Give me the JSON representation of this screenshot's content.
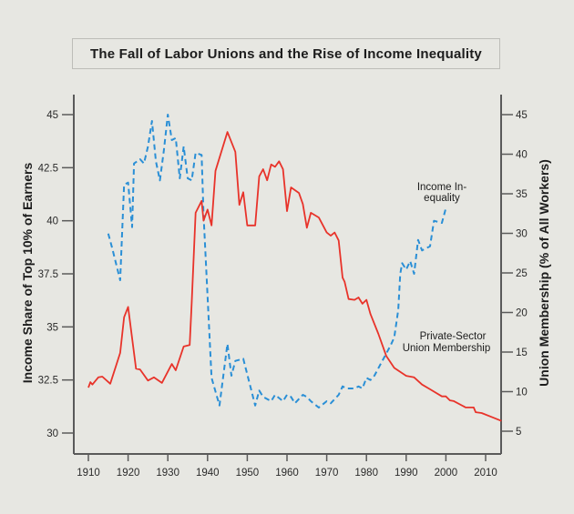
{
  "chart_data": {
    "type": "line",
    "title": "The Fall of Labor Unions and the Rise of Income Inequality",
    "xlabel": "",
    "ylabel_left": "Income Share of Top 10% of Earners",
    "ylabel_right": "Union Membership (% of All Workers)",
    "xlim": [
      1910,
      2014
    ],
    "ylim_left": [
      30,
      45
    ],
    "ylim_right": [
      5,
      45
    ],
    "x_ticks": [
      "1910",
      "1920",
      "1930",
      "1940",
      "1950",
      "1960",
      "1970",
      "1980",
      "1990",
      "2000",
      "2010"
    ],
    "y_ticks_left": [
      "30",
      "32.5",
      "35",
      "37.5",
      "40",
      "42.5",
      "45"
    ],
    "y_ticks_right": [
      "5",
      "10",
      "15",
      "20",
      "25",
      "30",
      "35",
      "40",
      "45"
    ],
    "grid": false,
    "annotations": {
      "income_line1": "Income In-",
      "income_line2": "equality",
      "union_line1": "Private-Sector",
      "union_line2": "Union Membership"
    },
    "series": [
      {
        "name": "Income Inequality",
        "axis": "left",
        "style": "dashed",
        "color": "#2a8fd6",
        "x": [
          1915,
          1916,
          1918,
          1919,
          1920,
          1921,
          1921.5,
          1923,
          1924,
          1925,
          1926,
          1927,
          1928,
          1929,
          1930,
          1931,
          1932,
          1933,
          1934,
          1935,
          1936,
          1937,
          1938.5,
          1939,
          1941,
          1943,
          1945,
          1946,
          1947,
          1949,
          1952,
          1953,
          1954,
          1956,
          1957,
          1959,
          1960,
          1961,
          1962,
          1964,
          1965,
          1966,
          1968,
          1970,
          1971,
          1973,
          1974,
          1975,
          1977,
          1978,
          1979,
          1980,
          1981,
          1982,
          1984,
          1986,
          1987,
          1988,
          1988.5,
          1989,
          1990,
          1991,
          1992,
          1993,
          1994,
          1996,
          1997,
          1999,
          2000
        ],
        "values": [
          39.4,
          38.7,
          37.2,
          41.7,
          41.8,
          39.7,
          42.7,
          42.9,
          42.7,
          43.5,
          44.7,
          42.8,
          41.9,
          43.3,
          45.0,
          43.8,
          43.9,
          42.0,
          43.5,
          42.0,
          41.9,
          43.2,
          43.1,
          40.3,
          32.6,
          31.3,
          34.2,
          32.7,
          33.4,
          33.5,
          31.3,
          32.0,
          31.7,
          31.5,
          31.8,
          31.5,
          31.8,
          31.7,
          31.4,
          31.8,
          31.7,
          31.5,
          31.2,
          31.5,
          31.4,
          31.8,
          32.2,
          32.1,
          32.1,
          32.2,
          32.1,
          32.6,
          32.5,
          32.7,
          33.4,
          34.1,
          34.5,
          35.8,
          37.5,
          38.0,
          37.7,
          38.1,
          37.5,
          39.1,
          38.6,
          38.8,
          40.0,
          39.9,
          40.6
        ]
      },
      {
        "name": "Private-Sector Union Membership",
        "axis": "right",
        "style": "solid",
        "color": "#e8332a",
        "x": [
          1910,
          1910.5,
          1911,
          1912.5,
          1913.5,
          1915.5,
          1918,
          1919,
          1920,
          1922,
          1923,
          1925,
          1926.5,
          1928.5,
          1931,
          1932,
          1934,
          1935.5,
          1936,
          1937,
          1938.5,
          1939,
          1940,
          1941,
          1942,
          1945,
          1947,
          1948,
          1949,
          1950,
          1952,
          1953,
          1954,
          1955,
          1956,
          1957,
          1958,
          1959,
          1960,
          1961,
          1963,
          1964,
          1965,
          1966,
          1968,
          1970,
          1971,
          1972,
          1973,
          1974,
          1974.5,
          1975.5,
          1977,
          1978,
          1979,
          1980,
          1981,
          1983,
          1985,
          1987,
          1990,
          1992,
          1994,
          1996,
          1999,
          2000,
          2001,
          2002,
          2005,
          2007,
          2007.5,
          2009,
          2012,
          2014
        ],
        "values": [
          10.5,
          11.2,
          10.9,
          11.8,
          11.9,
          11.0,
          14.9,
          19.4,
          20.7,
          12.9,
          12.8,
          11.4,
          11.8,
          11.1,
          13.5,
          12.7,
          15.7,
          15.9,
          21.2,
          32.6,
          34.1,
          31.6,
          33.0,
          31.0,
          37.9,
          42.8,
          40.3,
          33.6,
          35.2,
          31.0,
          31.0,
          37.2,
          38.1,
          36.7,
          38.7,
          38.4,
          39.1,
          38.1,
          32.8,
          35.8,
          35.1,
          33.7,
          30.7,
          32.6,
          32.0,
          30.1,
          29.7,
          30.1,
          29.1,
          24.4,
          23.9,
          21.7,
          21.6,
          21.9,
          21.1,
          21.6,
          19.8,
          17.3,
          14.5,
          13.0,
          12.0,
          11.8,
          10.9,
          10.3,
          9.4,
          9.4,
          8.9,
          8.8,
          8.0,
          8.0,
          7.4,
          7.3,
          6.7,
          6.3
        ]
      }
    ]
  }
}
